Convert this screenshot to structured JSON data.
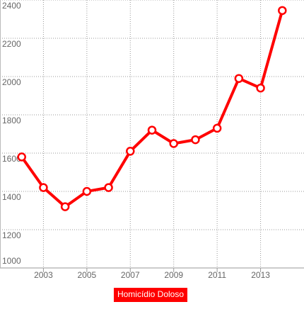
{
  "chart_data": {
    "type": "line",
    "x": [
      2002,
      2003,
      2004,
      2005,
      2006,
      2007,
      2008,
      2009,
      2010,
      2011,
      2012,
      2013,
      2014
    ],
    "series": [
      {
        "name": "Homicídio Doloso",
        "color": "#ff0000",
        "values": [
          1580,
          1420,
          1320,
          1400,
          1420,
          1610,
          1720,
          1650,
          1670,
          1730,
          1990,
          1940,
          2345
        ]
      }
    ],
    "xlim": [
      2001,
      2015
    ],
    "xticks": [
      2003,
      2005,
      2007,
      2009,
      2011,
      2013
    ],
    "ylim": [
      1000,
      2400
    ],
    "yticks": [
      1000,
      1200,
      1400,
      1600,
      1800,
      2000,
      2200,
      2400
    ],
    "grid": true,
    "legend": "bottom"
  }
}
